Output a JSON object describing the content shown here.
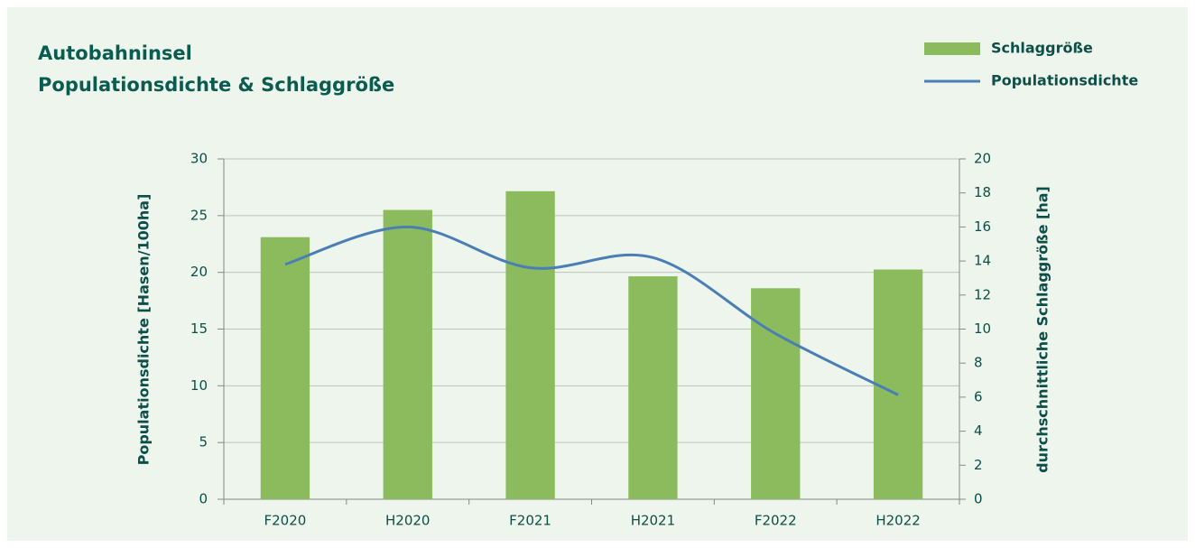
{
  "chart_data": {
    "type": "bar_line",
    "title": [
      "Autobahninsel",
      "Populationsdichte & Schlaggröße"
    ],
    "categories": [
      "F2020",
      "H2020",
      "F2021",
      "H2021",
      "F2022",
      "H2022"
    ],
    "series": [
      {
        "name": "Schlaggröße",
        "type": "bar",
        "axis": "y2",
        "color": "#8cbb5d",
        "values": [
          15.4,
          17.0,
          18.1,
          13.1,
          12.4,
          13.5
        ]
      },
      {
        "name": "Populationsdichte",
        "type": "line",
        "axis": "y",
        "color": "#4a7fb5",
        "values": [
          20.7,
          24.0,
          20.4,
          21.3,
          14.6,
          9.2
        ]
      }
    ],
    "ylabel": "Populationsdichte [Hasen/100ha]",
    "y2label": "durchschnittliche Schlaggröße [ha]",
    "ylim": [
      0,
      30
    ],
    "yticks": [
      0,
      5,
      10,
      15,
      20,
      25,
      30
    ],
    "y2lim": [
      0,
      20
    ],
    "y2ticks": [
      0,
      2,
      4,
      6,
      8,
      10,
      12,
      14,
      16,
      18,
      20
    ],
    "grid": true,
    "legend": "upper right"
  }
}
